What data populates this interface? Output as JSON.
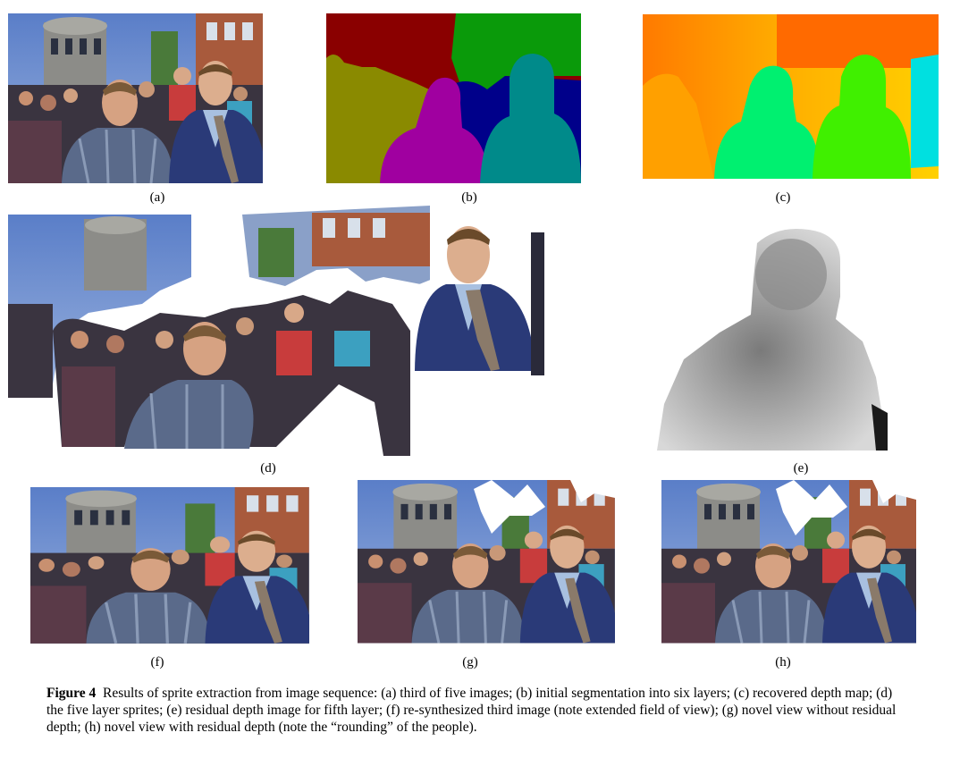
{
  "figure": {
    "panel_labels": {
      "a": "(a)",
      "b": "(b)",
      "c": "(c)",
      "d": "(d)",
      "e": "(e)",
      "f": "(f)",
      "g": "(g)",
      "h": "(h)"
    },
    "caption_label": "Figure 4",
    "caption_text": "Results of sprite extraction from image sequence: (a) third of five images; (b) initial segmentation into six layers; (c) recovered depth map; (d) the five layer sprites; (e) residual depth image for fifth layer; (f) re-synthesized third image (note extended field of view); (g) novel view without residual depth; (h) novel view with residual depth (note the “rounding” of the people)."
  },
  "colors": {
    "segment_red": "#8a0000",
    "segment_green": "#0a9a0a",
    "segment_olive": "#8a8a00",
    "segment_blue": "#00008a",
    "segment_magenta": "#a000a0",
    "segment_teal": "#008a8a"
  }
}
